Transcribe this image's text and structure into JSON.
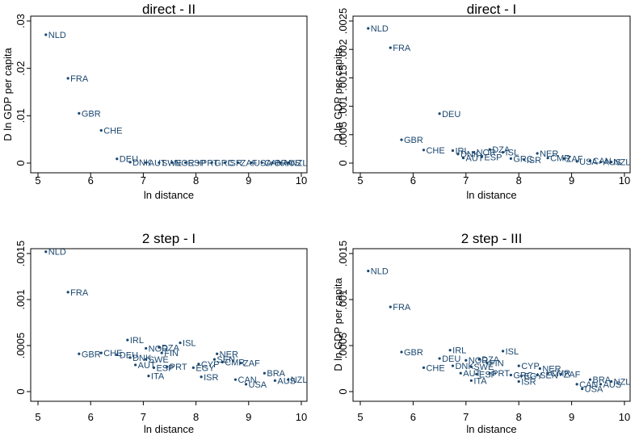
{
  "chart_data": [
    {
      "type": "scatter",
      "title": "direct - II",
      "xlabel": "ln distance",
      "ylabel": "D ln GDP per capita",
      "xlim": [
        5,
        10
      ],
      "ylim": [
        0,
        0.03
      ],
      "xticks": [
        "5",
        "6",
        "7",
        "8",
        "9",
        "10"
      ],
      "yticks": [
        {
          "value": 0,
          "label": "0"
        },
        {
          "value": 0.01,
          "label": ".01"
        },
        {
          "value": 0.02,
          "label": ".02"
        },
        {
          "value": 0.03,
          "label": ".03"
        }
      ],
      "points": [
        {
          "label": "NLD",
          "x": 5.15,
          "y": 0.0271
        },
        {
          "label": "FRA",
          "x": 5.57,
          "y": 0.0179
        },
        {
          "label": "GBR",
          "x": 5.78,
          "y": 0.0105
        },
        {
          "label": "CHE",
          "x": 6.2,
          "y": 0.0069
        },
        {
          "label": "DEU",
          "x": 6.5,
          "y": 0.0009
        },
        {
          "label": "DNK",
          "x": 6.75,
          "y": 0.0002
        },
        {
          "label": "AUT",
          "x": 7.05,
          "y": 0.0001
        },
        {
          "label": "SWE",
          "x": 7.3,
          "y": 0.0001
        },
        {
          "label": "NOR",
          "x": 7.55,
          "y": 0.0001
        },
        {
          "label": "ESP",
          "x": 7.8,
          "y": 0.0001
        },
        {
          "label": "PRT",
          "x": 8.05,
          "y": 0.0001
        },
        {
          "label": "GRC",
          "x": 8.3,
          "y": 0.0001
        },
        {
          "label": "ISR",
          "x": 8.55,
          "y": 0.0001
        },
        {
          "label": "ZAF",
          "x": 8.8,
          "y": 0.0001
        },
        {
          "label": "USA",
          "x": 9.05,
          "y": 0.0001
        },
        {
          "label": "CAN",
          "x": 9.25,
          "y": 0.0001
        },
        {
          "label": "BRA",
          "x": 9.45,
          "y": 0.0001
        },
        {
          "label": "AUS",
          "x": 9.6,
          "y": 0.0001
        },
        {
          "label": "NZL",
          "x": 9.75,
          "y": 0.0001
        }
      ]
    },
    {
      "type": "scatter",
      "title": "direct - I",
      "xlabel": "ln distance",
      "ylabel": "D ln GDP per capita",
      "xlim": [
        5,
        10
      ],
      "ylim": [
        0,
        0.0025
      ],
      "xticks": [
        "5",
        "6",
        "7",
        "8",
        "9",
        "10"
      ],
      "yticks": [
        {
          "value": 0,
          "label": "0"
        },
        {
          "value": 0.0005,
          "label": ".0005"
        },
        {
          "value": 0.001,
          "label": ".001"
        },
        {
          "value": 0.0015,
          "label": ".0015"
        },
        {
          "value": 0.002,
          "label": ".002"
        },
        {
          "value": 0.0025,
          "label": ".0025"
        }
      ],
      "points": [
        {
          "label": "NLD",
          "x": 5.15,
          "y": 0.00237
        },
        {
          "label": "FRA",
          "x": 5.57,
          "y": 0.00203
        },
        {
          "label": "DEU",
          "x": 6.5,
          "y": 0.00087
        },
        {
          "label": "GBR",
          "x": 5.78,
          "y": 0.00041
        },
        {
          "label": "CHE",
          "x": 6.2,
          "y": 0.00023
        },
        {
          "label": "IRL",
          "x": 6.75,
          "y": 0.00022
        },
        {
          "label": "DNK",
          "x": 6.85,
          "y": 0.00016
        },
        {
          "label": "NOR",
          "x": 7.15,
          "y": 0.00019
        },
        {
          "label": "DZA",
          "x": 7.45,
          "y": 0.00024
        },
        {
          "label": "ISL",
          "x": 7.7,
          "y": 0.00019
        },
        {
          "label": "AUT",
          "x": 6.95,
          "y": 9e-05
        },
        {
          "label": "ESP",
          "x": 7.3,
          "y": 0.00011
        },
        {
          "label": "NER",
          "x": 8.35,
          "y": 0.00017
        },
        {
          "label": "GRC",
          "x": 7.85,
          "y": 8e-05
        },
        {
          "label": "ISR",
          "x": 8.1,
          "y": 6e-05
        },
        {
          "label": "CMR",
          "x": 8.55,
          "y": 9e-05
        },
        {
          "label": "ZAF",
          "x": 8.85,
          "y": 8e-05
        },
        {
          "label": "USA",
          "x": 9.1,
          "y": 3e-05
        },
        {
          "label": "CAN",
          "x": 9.35,
          "y": 4e-05
        },
        {
          "label": "AUS",
          "x": 9.55,
          "y": 2e-05
        },
        {
          "label": "NZL",
          "x": 9.75,
          "y": 2e-05
        }
      ]
    },
    {
      "type": "scatter",
      "title": "2 step - I",
      "xlabel": "ln distance",
      "ylabel": "",
      "xlim": [
        5,
        10
      ],
      "ylim": [
        0,
        0.0015
      ],
      "xticks": [
        "5",
        "6",
        "7",
        "8",
        "9",
        "10"
      ],
      "yticks": [
        {
          "value": 0,
          "label": "0"
        },
        {
          "value": 0.0005,
          "label": ".0005"
        },
        {
          "value": 0.001,
          "label": ".001"
        },
        {
          "value": 0.0015,
          "label": ".0015"
        }
      ],
      "points": [
        {
          "label": "NLD",
          "x": 5.15,
          "y": 0.00152
        },
        {
          "label": "FRA",
          "x": 5.57,
          "y": 0.00108
        },
        {
          "label": "IRL",
          "x": 6.7,
          "y": 0.00056
        },
        {
          "label": "ISL",
          "x": 7.7,
          "y": 0.00053
        },
        {
          "label": "NOR",
          "x": 7.05,
          "y": 0.00047
        },
        {
          "label": "DZA",
          "x": 7.3,
          "y": 0.00048
        },
        {
          "label": "GBR",
          "x": 5.78,
          "y": 0.00041
        },
        {
          "label": "CHE",
          "x": 6.2,
          "y": 0.00042
        },
        {
          "label": "DEU",
          "x": 6.5,
          "y": 0.0004
        },
        {
          "label": "DNK",
          "x": 6.75,
          "y": 0.00037
        },
        {
          "label": "SWE",
          "x": 7.05,
          "y": 0.00035
        },
        {
          "label": "FIN",
          "x": 7.35,
          "y": 0.00042
        },
        {
          "label": "AUT",
          "x": 6.85,
          "y": 0.00029
        },
        {
          "label": "ESP",
          "x": 7.2,
          "y": 0.00026
        },
        {
          "label": "PRT",
          "x": 7.45,
          "y": 0.00027
        },
        {
          "label": "CYP",
          "x": 8.05,
          "y": 0.0003
        },
        {
          "label": "EGY",
          "x": 7.95,
          "y": 0.00026
        },
        {
          "label": "NER",
          "x": 8.4,
          "y": 0.00041
        },
        {
          "label": "SEN",
          "x": 8.35,
          "y": 0.00035
        },
        {
          "label": "CMR",
          "x": 8.5,
          "y": 0.00032
        },
        {
          "label": "ZAF",
          "x": 8.85,
          "y": 0.00031
        },
        {
          "label": "ITA",
          "x": 7.1,
          "y": 0.00017
        },
        {
          "label": "ISR",
          "x": 8.1,
          "y": 0.00016
        },
        {
          "label": "BRA",
          "x": 9.3,
          "y": 0.0002
        },
        {
          "label": "CAN",
          "x": 8.75,
          "y": 0.00013
        },
        {
          "label": "USA",
          "x": 8.95,
          "y": 8e-05
        },
        {
          "label": "AUS",
          "x": 9.5,
          "y": 0.00012
        },
        {
          "label": "NZL",
          "x": 9.75,
          "y": 0.00013
        }
      ]
    },
    {
      "type": "scatter",
      "title": "2 step - III",
      "xlabel": "ln distance",
      "ylabel": "D ln GDP per capita",
      "xlim": [
        5,
        10
      ],
      "ylim": [
        0,
        0.0015
      ],
      "xticks": [
        "5",
        "6",
        "7",
        "8",
        "9",
        "10"
      ],
      "yticks": [
        {
          "value": 0,
          "label": "0"
        },
        {
          "value": 0.0005,
          "label": ".0005"
        },
        {
          "value": 0.001,
          "label": ".001"
        },
        {
          "value": 0.0015,
          "label": ".0015"
        }
      ],
      "points": [
        {
          "label": "NLD",
          "x": 5.15,
          "y": 0.00131
        },
        {
          "label": "FRA",
          "x": 5.57,
          "y": 0.00092
        },
        {
          "label": "GBR",
          "x": 5.78,
          "y": 0.00043
        },
        {
          "label": "IRL",
          "x": 6.7,
          "y": 0.00045
        },
        {
          "label": "ISL",
          "x": 7.7,
          "y": 0.00044
        },
        {
          "label": "DEU",
          "x": 6.5,
          "y": 0.00036
        },
        {
          "label": "NOR",
          "x": 7.0,
          "y": 0.00034
        },
        {
          "label": "DZA",
          "x": 7.25,
          "y": 0.00035
        },
        {
          "label": "FIN",
          "x": 7.4,
          "y": 0.00031
        },
        {
          "label": "CHE",
          "x": 6.2,
          "y": 0.00026
        },
        {
          "label": "DNK",
          "x": 6.75,
          "y": 0.00028
        },
        {
          "label": "SWE",
          "x": 7.1,
          "y": 0.00027
        },
        {
          "label": "CYP",
          "x": 8.0,
          "y": 0.00028
        },
        {
          "label": "NER",
          "x": 8.4,
          "y": 0.00025
        },
        {
          "label": "AUT",
          "x": 6.9,
          "y": 0.0002
        },
        {
          "label": "ESP",
          "x": 7.2,
          "y": 0.00019
        },
        {
          "label": "PRT",
          "x": 7.45,
          "y": 0.0002
        },
        {
          "label": "GRC",
          "x": 7.85,
          "y": 0.00018
        },
        {
          "label": "EGY",
          "x": 8.05,
          "y": 0.00017
        },
        {
          "label": "SEN",
          "x": 8.35,
          "y": 0.00018
        },
        {
          "label": "CMR",
          "x": 8.55,
          "y": 0.0002
        },
        {
          "label": "ZAF",
          "x": 8.8,
          "y": 0.00019
        },
        {
          "label": "ITA",
          "x": 7.1,
          "y": 0.00012
        },
        {
          "label": "ISR",
          "x": 8.0,
          "y": 0.00011
        },
        {
          "label": "BRA",
          "x": 9.35,
          "y": 0.00013
        },
        {
          "label": "CAN",
          "x": 9.1,
          "y": 8e-05
        },
        {
          "label": "USA",
          "x": 9.2,
          "y": 3e-05
        },
        {
          "label": "AUS",
          "x": 9.55,
          "y": 8e-05
        },
        {
          "label": "NZL",
          "x": 9.75,
          "y": 0.00011
        }
      ]
    }
  ]
}
